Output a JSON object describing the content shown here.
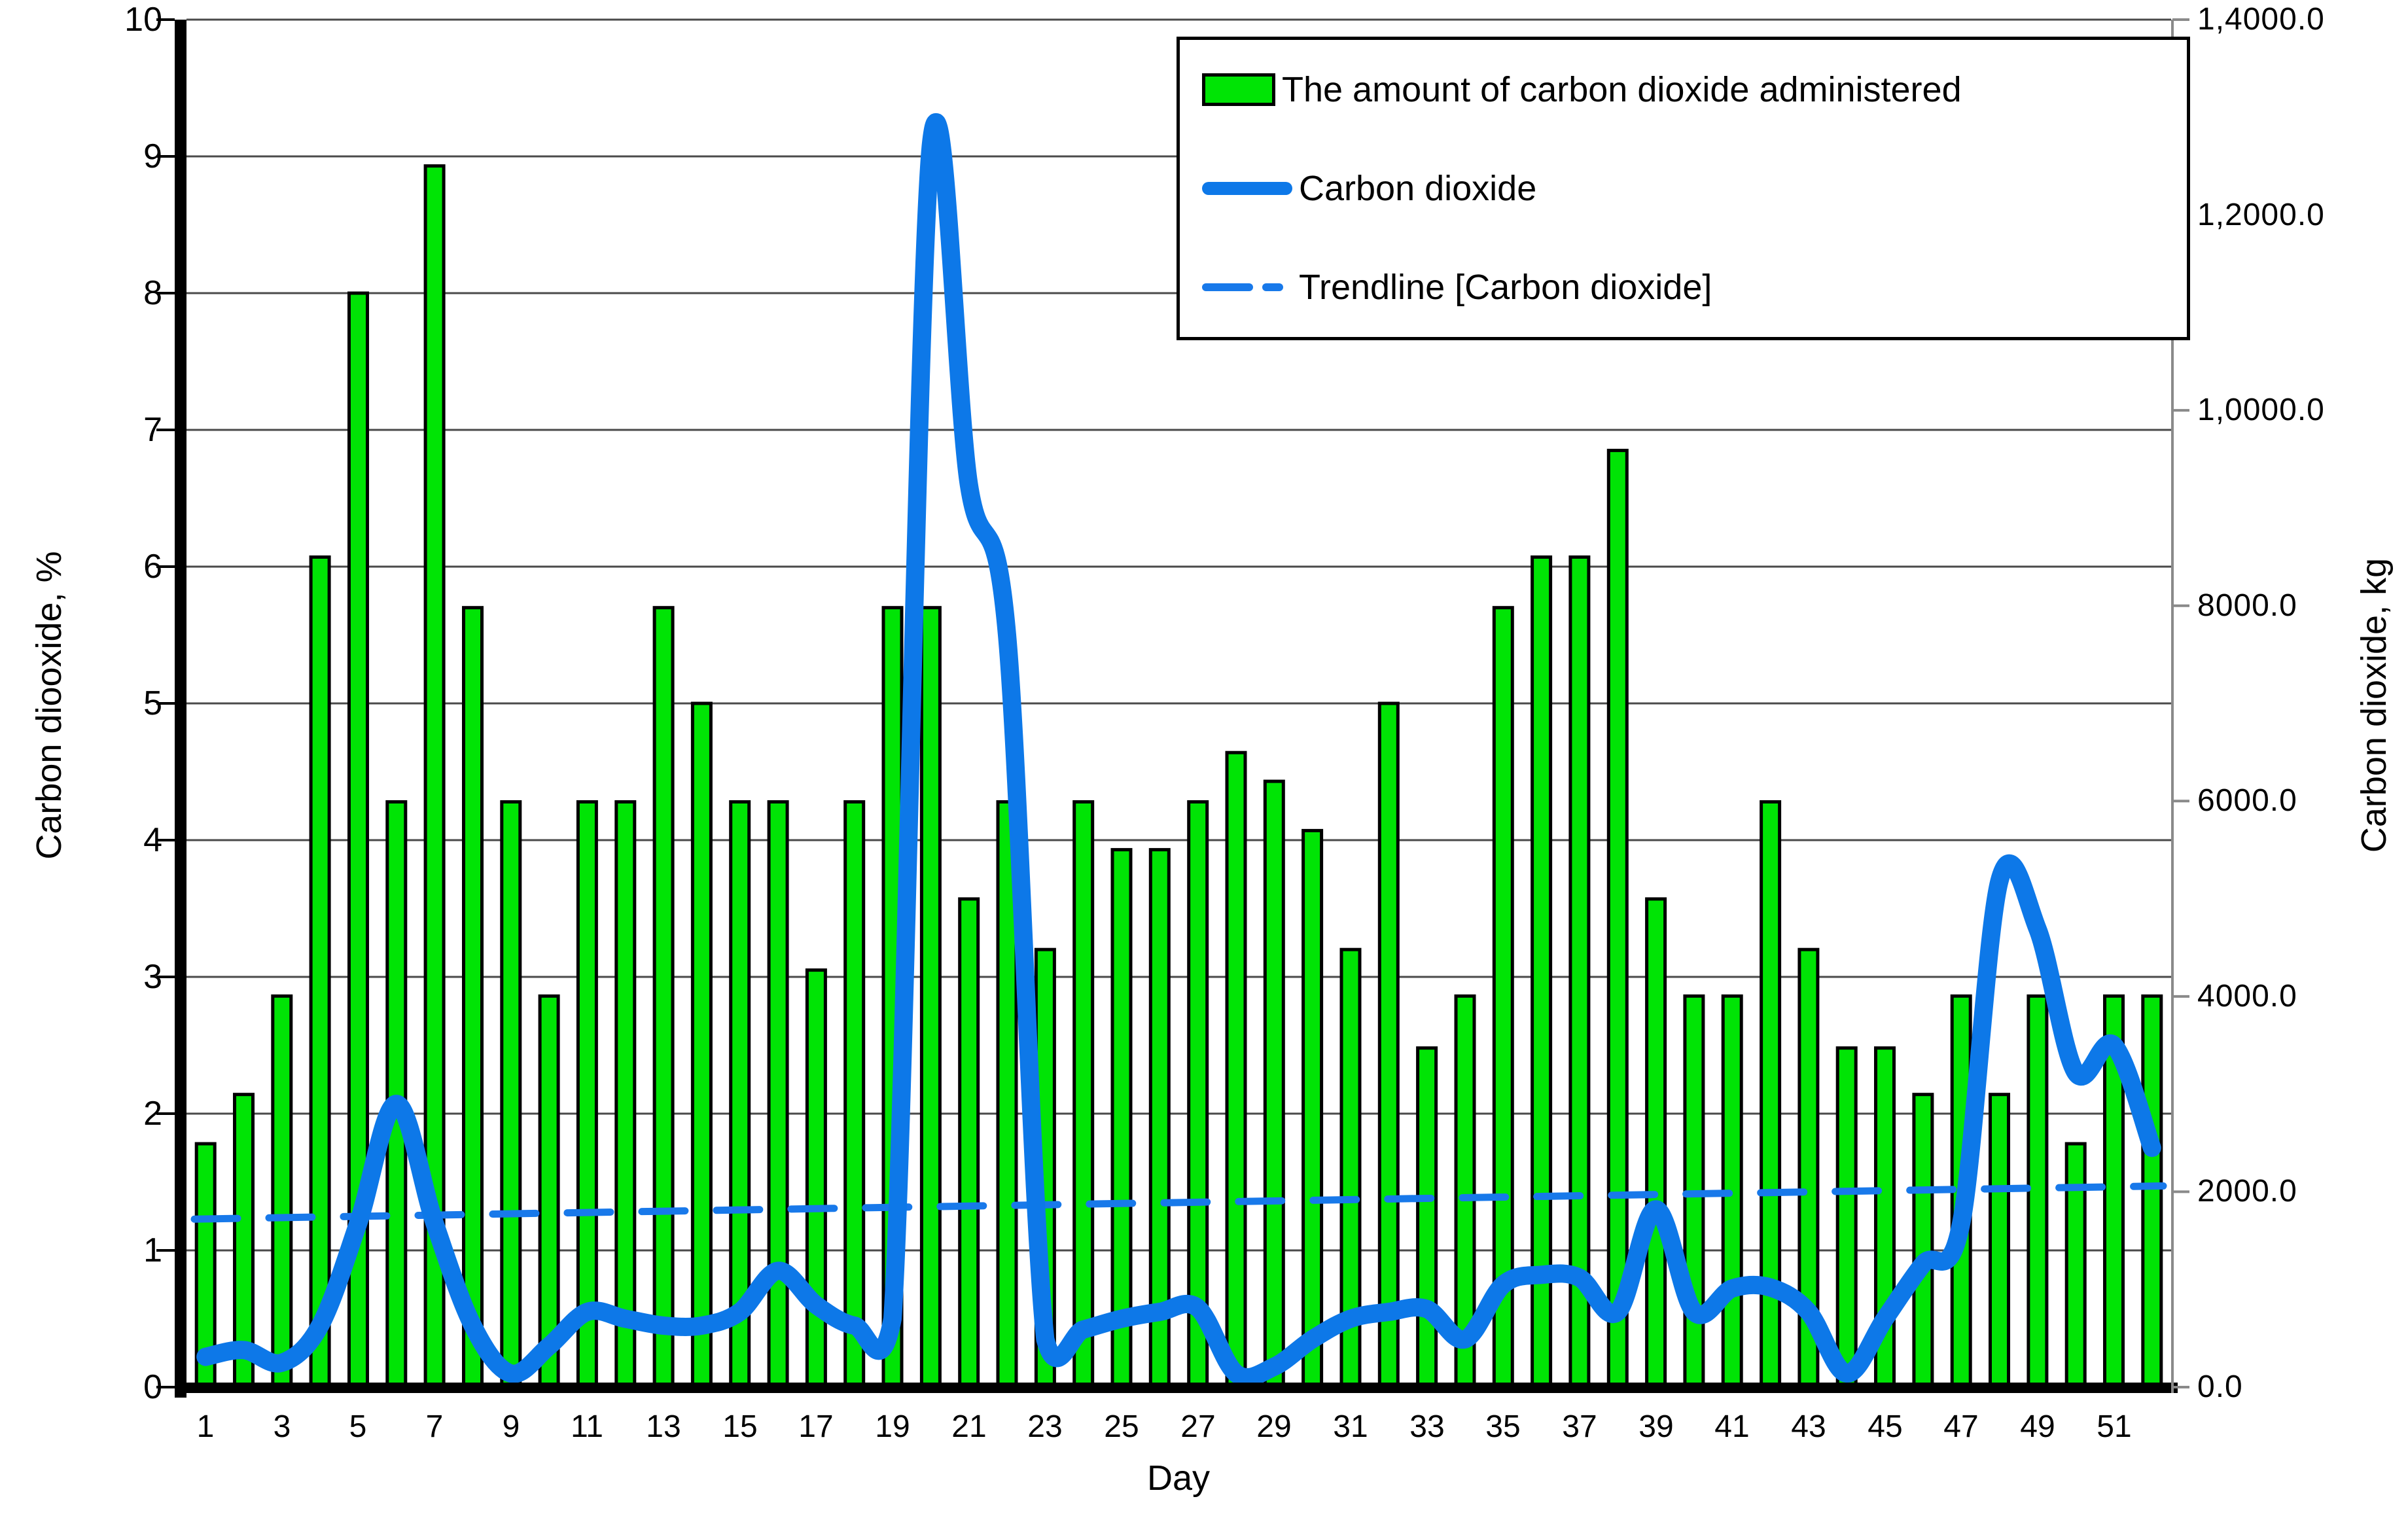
{
  "colors": {
    "background": "#ffffff",
    "bar_fill": "#00e405",
    "bar_border": "#000000",
    "line": "#0d78e8",
    "trendline": "#1879ea",
    "gridline": "#4a4a4a",
    "axis": "#000000",
    "right_axis": "#8a8a8a",
    "text": "#000000"
  },
  "chart_data": {
    "type": "bar+line",
    "title": "",
    "xlabel": "Day",
    "x": [
      1,
      2,
      3,
      4,
      5,
      6,
      7,
      8,
      9,
      10,
      11,
      12,
      13,
      14,
      15,
      16,
      17,
      18,
      19,
      20,
      21,
      22,
      23,
      24,
      25,
      26,
      27,
      28,
      29,
      30,
      31,
      32,
      33,
      34,
      35,
      36,
      37,
      38,
      39,
      40,
      41,
      42,
      43,
      44,
      45,
      46,
      47,
      48,
      49,
      50,
      51,
      52
    ],
    "x_tick_labels": [
      "1",
      "3",
      "5",
      "7",
      "9",
      "11",
      "13",
      "15",
      "17",
      "19",
      "21",
      "23",
      "25",
      "27",
      "29",
      "31",
      "33",
      "35",
      "37",
      "39",
      "41",
      "43",
      "45",
      "47",
      "49",
      "51"
    ],
    "left_axis": {
      "label": "Carbon diooxide, %",
      "min": 0,
      "max": 10,
      "tick_labels": [
        "0",
        "1",
        "2",
        "3",
        "4",
        "5",
        "6",
        "7",
        "8",
        "9",
        "10"
      ]
    },
    "right_axis": {
      "label": "Carbon dioxide, kg",
      "min": 0,
      "max": 14000,
      "tick_labels": [
        "0.0",
        "2000.0",
        "4000.0",
        "6000.0",
        "8000.0",
        "1,0000.0",
        "1,2000.0",
        "1,4000.0"
      ]
    },
    "grid": "horizontal",
    "legend_position": "top-right",
    "series": [
      {
        "name": "The amount of carbon dioxide administered",
        "type": "bar",
        "axis": "left",
        "unit": "%",
        "values": [
          1.78,
          2.14,
          2.86,
          6.07,
          8.0,
          4.28,
          8.93,
          5.7,
          4.28,
          2.86,
          4.28,
          4.28,
          5.7,
          5.0,
          4.28,
          4.28,
          3.05,
          4.28,
          5.7,
          5.7,
          3.57,
          4.28,
          3.2,
          4.28,
          3.93,
          3.93,
          4.28,
          4.64,
          4.43,
          4.07,
          3.2,
          5.0,
          2.48,
          2.86,
          5.7,
          6.07,
          6.07,
          6.85,
          3.57,
          2.86,
          2.86,
          4.28,
          3.2,
          2.48,
          2.48,
          2.14,
          2.86,
          2.14,
          2.86,
          1.78,
          2.86,
          2.86
        ]
      },
      {
        "name": "Carbon dioxide",
        "type": "line",
        "axis": "right",
        "unit": "kg",
        "values": [
          310,
          380,
          250,
          630,
          1680,
          2900,
          1680,
          630,
          140,
          420,
          770,
          700,
          630,
          630,
          770,
          1190,
          840,
          630,
          700,
          12700,
          9240,
          7700,
          490,
          590,
          700,
          770,
          810,
          140,
          210,
          490,
          700,
          770,
          800,
          490,
          1050,
          1150,
          1120,
          770,
          1820,
          770,
          1010,
          1020,
          770,
          140,
          700,
          1260,
          1680,
          5180,
          4690,
          3220,
          3500,
          2450
        ]
      },
      {
        "name": "Trendline [Carbon dioxide]",
        "type": "dashed-line",
        "axis": "right",
        "unit": "kg",
        "start_value": 1720,
        "end_value": 2060
      }
    ]
  }
}
